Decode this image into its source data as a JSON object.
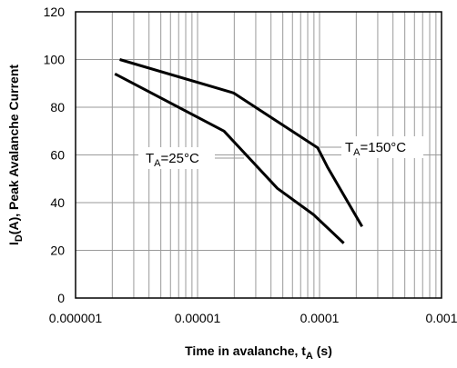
{
  "chart_data": {
    "type": "line",
    "xscale": "log",
    "xlim": [
      1e-06,
      0.001
    ],
    "ylim": [
      0,
      120
    ],
    "grid": true,
    "xticks": [
      {
        "value": 1e-06,
        "label": "0.000001"
      },
      {
        "value": 1e-05,
        "label": "0.00001"
      },
      {
        "value": 0.0001,
        "label": "0.0001"
      },
      {
        "value": 0.001,
        "label": "0.001"
      }
    ],
    "yticks": [
      0,
      20,
      40,
      60,
      80,
      100,
      120
    ],
    "xlabel": {
      "main": "Time in avalanche, t",
      "sub": "A",
      "tail": " (s)"
    },
    "ylabel": {
      "main": "I",
      "sub": "D",
      "tail": "(A), Peak Avalanche Current"
    },
    "series": [
      {
        "name": "TA=25°C",
        "label": {
          "main": "T",
          "sub": "A",
          "tail": "=25°C"
        },
        "x": [
          2.1e-06,
          1.65e-05,
          4.51e-05,
          8.91e-05,
          0.000158
        ],
        "y": [
          94,
          70,
          46,
          35,
          23
        ]
      },
      {
        "name": "TA=150°C",
        "label": {
          "main": "T",
          "sub": "A",
          "tail": "=150°C"
        },
        "x": [
          2.3e-06,
          1.97e-05,
          9.64e-05,
          0.000116,
          0.000223
        ],
        "y": [
          100,
          86,
          63,
          55,
          30
        ]
      }
    ]
  }
}
